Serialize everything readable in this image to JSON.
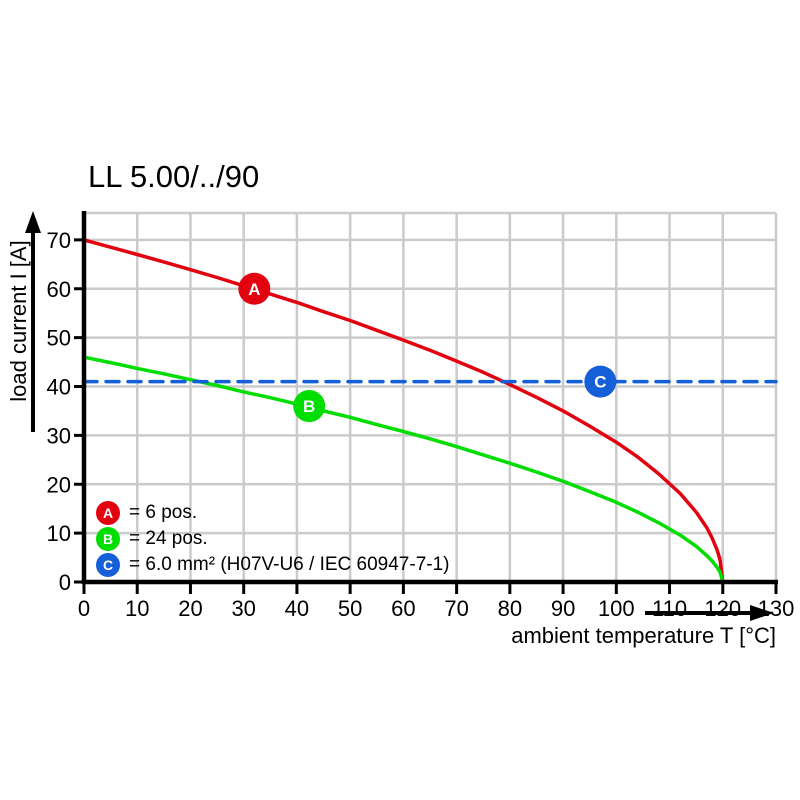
{
  "chart_data": {
    "type": "line",
    "title": "LL 5.00/../90",
    "xlabel": "ambient temperature T [°C]",
    "ylabel": "load current I [A]",
    "xlim": [
      0,
      130
    ],
    "ylim": [
      0,
      75.5
    ],
    "x_ticks": [
      0,
      10,
      20,
      30,
      40,
      50,
      60,
      70,
      80,
      90,
      100,
      110,
      120,
      130
    ],
    "y_ticks": [
      0,
      10,
      20,
      30,
      40,
      50,
      60,
      70
    ],
    "grid": true,
    "grid_color": "#cbcbcb",
    "legend_position": "bottom-left-inside",
    "series": [
      {
        "name": "A",
        "label": "= 6 pos.",
        "color": "#e3000f",
        "style": "solid",
        "marker": {
          "letter": "A",
          "x": 32,
          "y": 60
        },
        "points": [
          [
            0,
            70
          ],
          [
            5,
            68.5
          ],
          [
            10,
            67
          ],
          [
            15,
            65.5
          ],
          [
            20,
            63.9
          ],
          [
            25,
            62.3
          ],
          [
            30,
            60.6
          ],
          [
            35,
            58.9
          ],
          [
            40,
            57.2
          ],
          [
            45,
            55.3
          ],
          [
            50,
            53.5
          ],
          [
            55,
            51.5
          ],
          [
            60,
            49.5
          ],
          [
            65,
            47.4
          ],
          [
            70,
            45.2
          ],
          [
            75,
            42.9
          ],
          [
            80,
            40.4
          ],
          [
            85,
            37.8
          ],
          [
            90,
            35
          ],
          [
            95,
            31.9
          ],
          [
            100,
            28.6
          ],
          [
            104,
            25.6
          ],
          [
            108,
            22.1
          ],
          [
            112,
            18.1
          ],
          [
            115,
            14.3
          ],
          [
            117,
            11.1
          ],
          [
            118,
            9
          ],
          [
            119,
            6.4
          ],
          [
            119.5,
            4.5
          ],
          [
            120,
            0
          ]
        ]
      },
      {
        "name": "B",
        "label": "= 24 pos.",
        "color": "#00dd00",
        "style": "solid",
        "marker": {
          "letter": "B",
          "x": 42.3,
          "y": 36
        },
        "points": [
          [
            0,
            46
          ],
          [
            5,
            44.9
          ],
          [
            10,
            43.7
          ],
          [
            15,
            42.6
          ],
          [
            20,
            41.4
          ],
          [
            25,
            40.2
          ],
          [
            30,
            38.9
          ],
          [
            35,
            37.7
          ],
          [
            40,
            36.4
          ],
          [
            45,
            35
          ],
          [
            50,
            33.7
          ],
          [
            55,
            32.2
          ],
          [
            60,
            30.8
          ],
          [
            65,
            29.3
          ],
          [
            70,
            27.7
          ],
          [
            75,
            26
          ],
          [
            80,
            24.3
          ],
          [
            85,
            22.5
          ],
          [
            90,
            20.6
          ],
          [
            95,
            18.5
          ],
          [
            100,
            16.3
          ],
          [
            104,
            14.3
          ],
          [
            108,
            12.1
          ],
          [
            112,
            9.6
          ],
          [
            115,
            7.3
          ],
          [
            117,
            5.4
          ],
          [
            118,
            4.3
          ],
          [
            119,
            2.9
          ],
          [
            119.5,
            2
          ],
          [
            120,
            0
          ]
        ]
      },
      {
        "name": "C",
        "label": "= 6.0 mm² (H07V-U6 / IEC 60947-7-1)",
        "color": "#155fd9",
        "style": "dashed",
        "marker": {
          "letter": "C",
          "x": 97,
          "y": 41
        },
        "points": [
          [
            0,
            41
          ],
          [
            130,
            41
          ]
        ]
      }
    ]
  }
}
